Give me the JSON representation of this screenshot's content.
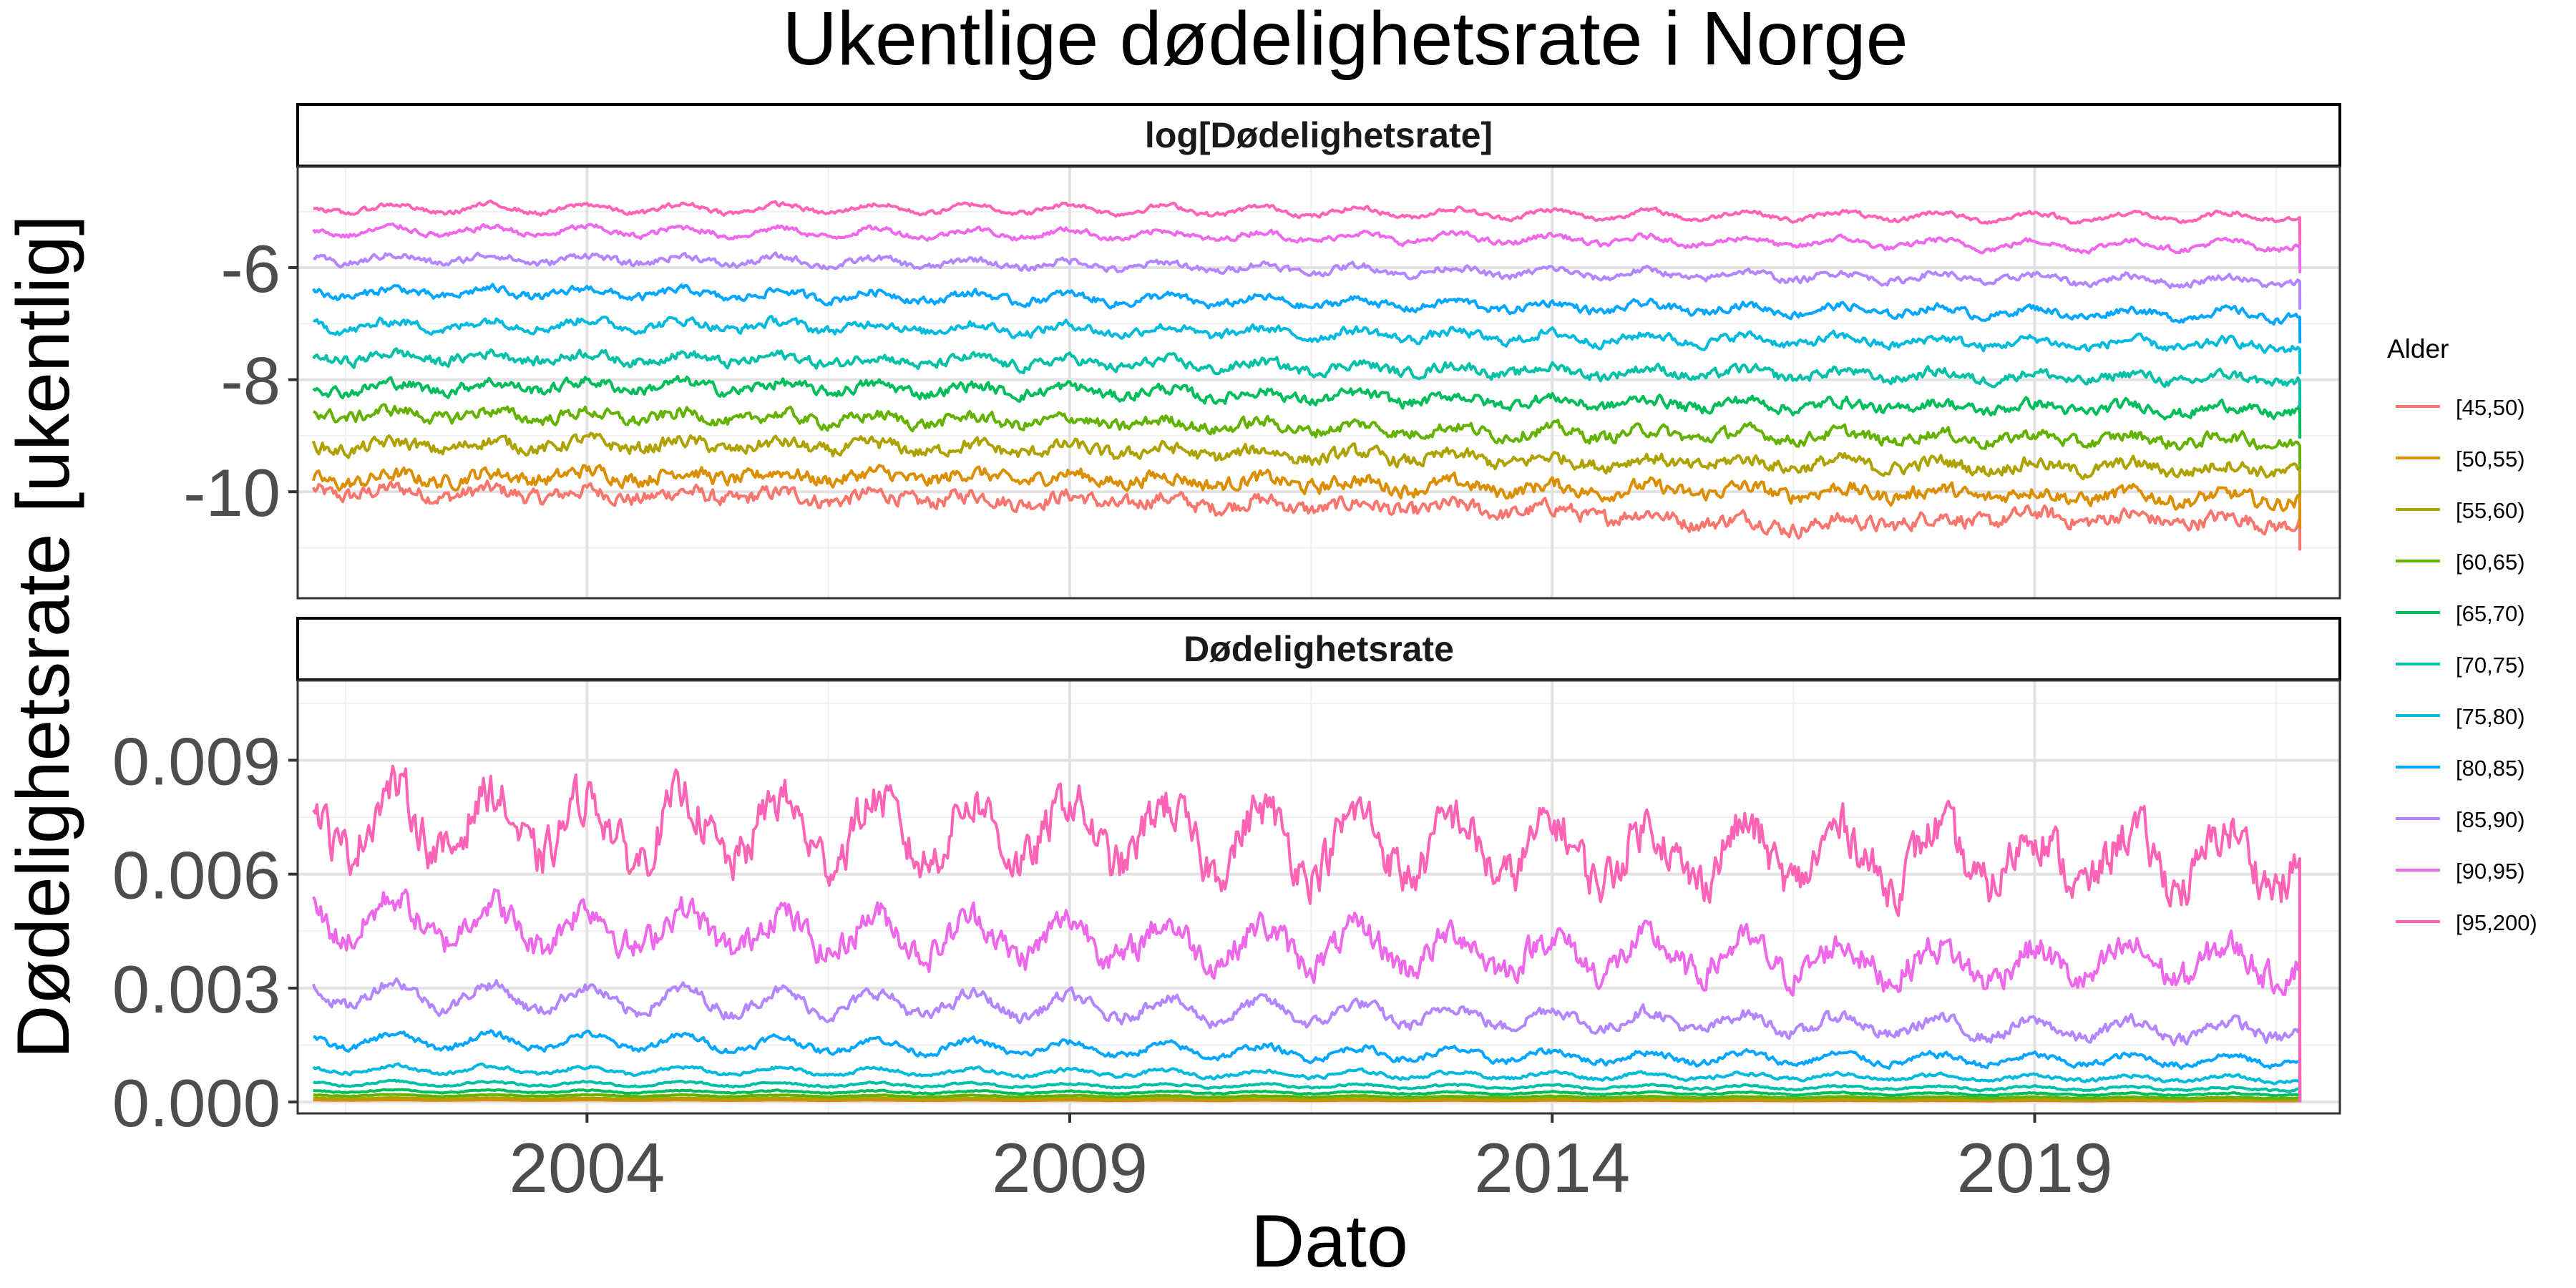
{
  "chart_data": {
    "type": "line",
    "title": "Ukentlige dødelighetsrate i Norge",
    "xlabel": "Dato",
    "ylabel": "Dødelighetsrate [ukentlig]",
    "grid": true,
    "x_range": [
      "2001-01-01",
      "2022-03-01"
    ],
    "x_ticks": [
      "2004",
      "2009",
      "2014",
      "2019"
    ],
    "x_tick_dates": [
      "2004-01-01",
      "2009-01-01",
      "2014-01-01",
      "2019-01-01"
    ],
    "legend": {
      "title": "Alder",
      "placement": "right",
      "entries": [
        "[45,50)",
        "[50,55)",
        "[55,60)",
        "[60,65)",
        "[65,70)",
        "[70,75)",
        "[75,80)",
        "[80,85)",
        "[85,90)",
        "[90,95)",
        "[95,200)"
      ]
    },
    "series_colors": [
      "#F8766D",
      "#DB8E00",
      "#AEA200",
      "#64B200",
      "#00BD5C",
      "#00C1A7",
      "#00BADE",
      "#00A6FF",
      "#B385FF",
      "#EF67EB",
      "#FF63B6"
    ],
    "panels": [
      {
        "strip_label": "log[Dødelighetsrate]",
        "ylim": [
          -11.9,
          -4.2
        ],
        "y_ticks": [
          -10,
          -8,
          -6
        ],
        "y_tick_labels": [
          "-10",
          "-8",
          "-6"
        ],
        "series": [
          {
            "name": "[45,50)",
            "anchor_x": [
              "2001-03-01",
              "2004-01-01",
              "2009-01-01",
              "2014-01-01",
              "2016-07-01",
              "2019-01-01",
              "2021-10-01"
            ],
            "anchor_y": [
              -10.0,
              -10.05,
              -10.15,
              -10.35,
              -10.6,
              -10.45,
              -10.55
            ]
          },
          {
            "name": "[50,55)",
            "anchor_x": [
              "2001-03-01",
              "2004-01-01",
              "2009-01-01",
              "2014-01-01",
              "2019-01-01",
              "2021-10-01"
            ],
            "anchor_y": [
              -9.8,
              -9.7,
              -9.75,
              -9.95,
              -10.05,
              -10.15
            ]
          },
          {
            "name": "[55,60)",
            "anchor_x": [
              "2001-03-01",
              "2004-01-01",
              "2009-01-01",
              "2014-01-01",
              "2019-01-01",
              "2021-10-01"
            ],
            "anchor_y": [
              -9.2,
              -9.15,
              -9.25,
              -9.45,
              -9.55,
              -9.6
            ]
          },
          {
            "name": "[60,65)",
            "anchor_x": [
              "2001-03-01",
              "2004-01-01",
              "2009-01-01",
              "2014-01-01",
              "2019-01-01",
              "2021-10-01"
            ],
            "anchor_y": [
              -8.6,
              -8.65,
              -8.75,
              -8.95,
              -9.05,
              -9.1
            ]
          },
          {
            "name": "[65,70)",
            "anchor_x": [
              "2001-03-01",
              "2004-01-01",
              "2009-01-01",
              "2014-01-01",
              "2019-01-01",
              "2021-10-01"
            ],
            "anchor_y": [
              -8.15,
              -8.1,
              -8.2,
              -8.4,
              -8.5,
              -8.55
            ]
          },
          {
            "name": "[70,75)",
            "anchor_x": [
              "2001-03-01",
              "2004-01-01",
              "2009-01-01",
              "2014-01-01",
              "2019-01-01",
              "2021-10-01"
            ],
            "anchor_y": [
              -7.6,
              -7.6,
              -7.7,
              -7.85,
              -7.95,
              -8.0
            ]
          },
          {
            "name": "[75,80)",
            "anchor_x": [
              "2001-03-01",
              "2004-01-01",
              "2009-01-01",
              "2014-01-01",
              "2019-01-01",
              "2021-10-01"
            ],
            "anchor_y": [
              -7.05,
              -7.0,
              -7.1,
              -7.25,
              -7.35,
              -7.4
            ]
          },
          {
            "name": "[80,85)",
            "anchor_x": [
              "2001-03-01",
              "2004-01-01",
              "2009-01-01",
              "2014-01-01",
              "2019-01-01",
              "2021-10-01"
            ],
            "anchor_y": [
              -6.45,
              -6.45,
              -6.55,
              -6.7,
              -6.8,
              -6.85
            ]
          },
          {
            "name": "[85,90)",
            "anchor_x": [
              "2001-03-01",
              "2004-01-01",
              "2009-01-01",
              "2014-01-01",
              "2019-01-01",
              "2021-10-01"
            ],
            "anchor_y": [
              -5.85,
              -5.85,
              -5.95,
              -6.1,
              -6.2,
              -6.25
            ]
          },
          {
            "name": "[90,95)",
            "anchor_x": [
              "2001-03-01",
              "2004-01-01",
              "2009-01-01",
              "2014-01-01",
              "2019-01-01",
              "2021-10-01"
            ],
            "anchor_y": [
              -5.35,
              -5.35,
              -5.4,
              -5.5,
              -5.6,
              -5.6
            ]
          },
          {
            "name": "[95,200)",
            "anchor_x": [
              "2001-03-01",
              "2004-01-01",
              "2009-01-01",
              "2014-01-01",
              "2019-01-01",
              "2021-10-01"
            ],
            "anchor_y": [
              -4.95,
              -4.95,
              -4.95,
              -5.05,
              -5.1,
              -5.1
            ]
          }
        ]
      },
      {
        "strip_label": "Dødelighetsrate",
        "ylim": [
          -0.0003,
          0.0111
        ],
        "y_ticks": [
          0.0,
          0.003,
          0.006,
          0.009
        ],
        "y_tick_labels": [
          "0.000",
          "0.003",
          "0.006",
          "0.009"
        ],
        "series": [
          {
            "name": "[45,50)",
            "anchor_x": [
              "2001-03-01",
              "2021-10-01"
            ],
            "anchor_y": [
              5e-05,
              3e-05
            ]
          },
          {
            "name": "[50,55)",
            "anchor_x": [
              "2001-03-01",
              "2021-10-01"
            ],
            "anchor_y": [
              6e-05,
              4e-05
            ]
          },
          {
            "name": "[55,60)",
            "anchor_x": [
              "2001-03-01",
              "2021-10-01"
            ],
            "anchor_y": [
              0.0001,
              7e-05
            ]
          },
          {
            "name": "[60,65)",
            "anchor_x": [
              "2001-03-01",
              "2021-10-01"
            ],
            "anchor_y": [
              0.00018,
              0.00011
            ]
          },
          {
            "name": "[65,70)",
            "anchor_x": [
              "2001-03-01",
              "2021-10-01"
            ],
            "anchor_y": [
              0.00029,
              0.0002
            ]
          },
          {
            "name": "[70,75)",
            "anchor_x": [
              "2001-03-01",
              "2021-10-01"
            ],
            "anchor_y": [
              0.0005,
              0.00034
            ]
          },
          {
            "name": "[75,80)",
            "anchor_x": [
              "2001-03-01",
              "2021-10-01"
            ],
            "anchor_y": [
              0.00087,
              0.0006
            ]
          },
          {
            "name": "[80,85)",
            "anchor_x": [
              "2001-03-01",
              "2004-01-01",
              "2009-01-01",
              "2014-01-01",
              "2019-01-01",
              "2021-10-01"
            ],
            "anchor_y": [
              0.0016,
              0.0016,
              0.0014,
              0.0012,
              0.0011,
              0.0011
            ]
          },
          {
            "name": "[85,90)",
            "anchor_x": [
              "2001-03-01",
              "2004-01-01",
              "2009-01-01",
              "2014-01-01",
              "2019-01-01",
              "2021-10-01"
            ],
            "anchor_y": [
              0.0029,
              0.0027,
              0.0025,
              0.0022,
              0.0019,
              0.0019
            ]
          },
          {
            "name": "[90,95)",
            "anchor_x": [
              "2001-03-01",
              "2004-01-01",
              "2009-01-01",
              "2014-01-01",
              "2019-01-01",
              "2021-10-01"
            ],
            "anchor_y": [
              0.0049,
              0.0046,
              0.0043,
              0.0039,
              0.0036,
              0.0037
            ]
          },
          {
            "name": "[95,200)",
            "anchor_x": [
              "2001-03-01",
              "2004-01-01",
              "2009-01-01",
              "2014-01-01",
              "2019-01-01",
              "2021-10-01"
            ],
            "anchor_y": [
              0.0075,
              0.0072,
              0.0071,
              0.0066,
              0.0064,
              0.0064
            ]
          }
        ]
      }
    ]
  }
}
